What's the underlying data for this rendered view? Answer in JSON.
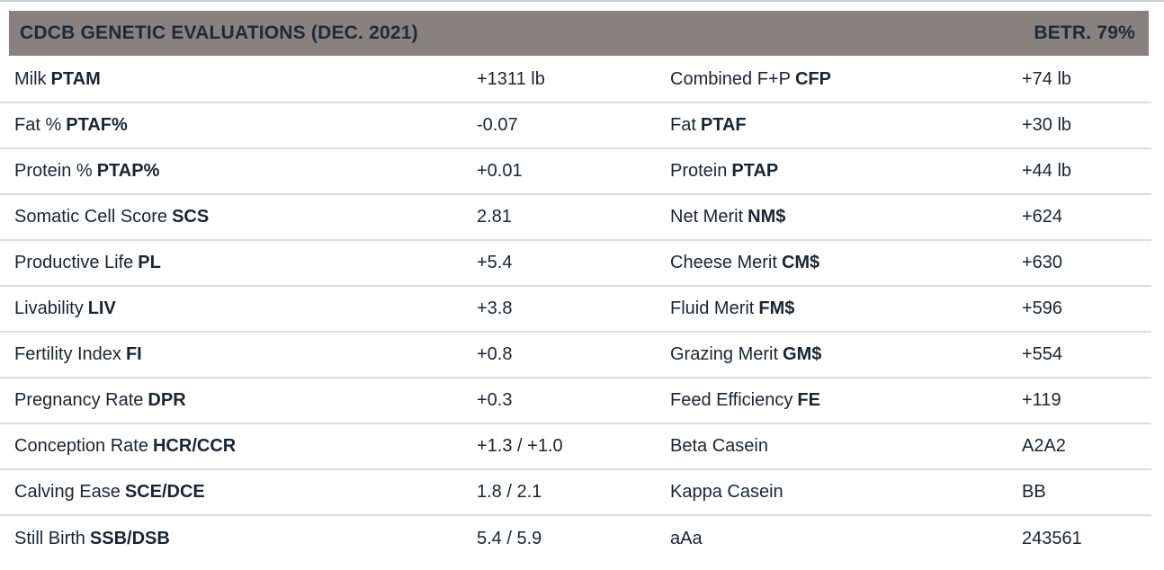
{
  "header": {
    "title": "CDCB GENETIC EVALUATIONS (DEC. 2021)",
    "reliability": "BETR. 79%"
  },
  "colors": {
    "header_bg": "#878180",
    "header_text": "#1f2a35",
    "row_text": "#1b2530",
    "divider": "#dadcdd",
    "top_border": "#cdd1d4"
  },
  "table": {
    "rows": [
      {
        "left": {
          "label": "Milk",
          "abbr": "PTAM",
          "value": "+1311 lb"
        },
        "right": {
          "label": "Combined F+P",
          "abbr": "CFP",
          "value": "+74 lb"
        }
      },
      {
        "left": {
          "label": "Fat %",
          "abbr": "PTAF%",
          "value": "-0.07"
        },
        "right": {
          "label": "Fat",
          "abbr": "PTAF",
          "value": "+30 lb"
        }
      },
      {
        "left": {
          "label": "Protein %",
          "abbr": "PTAP%",
          "value": "+0.01"
        },
        "right": {
          "label": "Protein",
          "abbr": "PTAP",
          "value": "+44 lb"
        }
      },
      {
        "left": {
          "label": "Somatic Cell Score",
          "abbr": "SCS",
          "value": "2.81"
        },
        "right": {
          "label": "Net Merit",
          "abbr": "NM$",
          "value": "+624"
        }
      },
      {
        "left": {
          "label": "Productive Life",
          "abbr": "PL",
          "value": "+5.4"
        },
        "right": {
          "label": "Cheese Merit",
          "abbr": "CM$",
          "value": "+630"
        }
      },
      {
        "left": {
          "label": "Livability",
          "abbr": "LIV",
          "value": "+3.8"
        },
        "right": {
          "label": "Fluid Merit",
          "abbr": "FM$",
          "value": "+596"
        }
      },
      {
        "left": {
          "label": "Fertility Index",
          "abbr": "FI",
          "value": "+0.8"
        },
        "right": {
          "label": "Grazing Merit",
          "abbr": "GM$",
          "value": "+554"
        }
      },
      {
        "left": {
          "label": "Pregnancy Rate",
          "abbr": "DPR",
          "value": "+0.3"
        },
        "right": {
          "label": "Feed Efficiency",
          "abbr": "FE",
          "value": "+119"
        }
      },
      {
        "left": {
          "label": "Conception Rate",
          "abbr": "HCR/CCR",
          "value": "+1.3 / +1.0"
        },
        "right": {
          "label": "Beta Casein",
          "abbr": "",
          "value": "A2A2"
        }
      },
      {
        "left": {
          "label": "Calving Ease",
          "abbr": "SCE/DCE",
          "value": "1.8 / 2.1"
        },
        "right": {
          "label": "Kappa Casein",
          "abbr": "",
          "value": "BB"
        }
      },
      {
        "left": {
          "label": "Still Birth",
          "abbr": "SSB/DSB",
          "value": "5.4 / 5.9"
        },
        "right": {
          "label": "aAa",
          "abbr": "",
          "value": "243561"
        }
      }
    ]
  }
}
